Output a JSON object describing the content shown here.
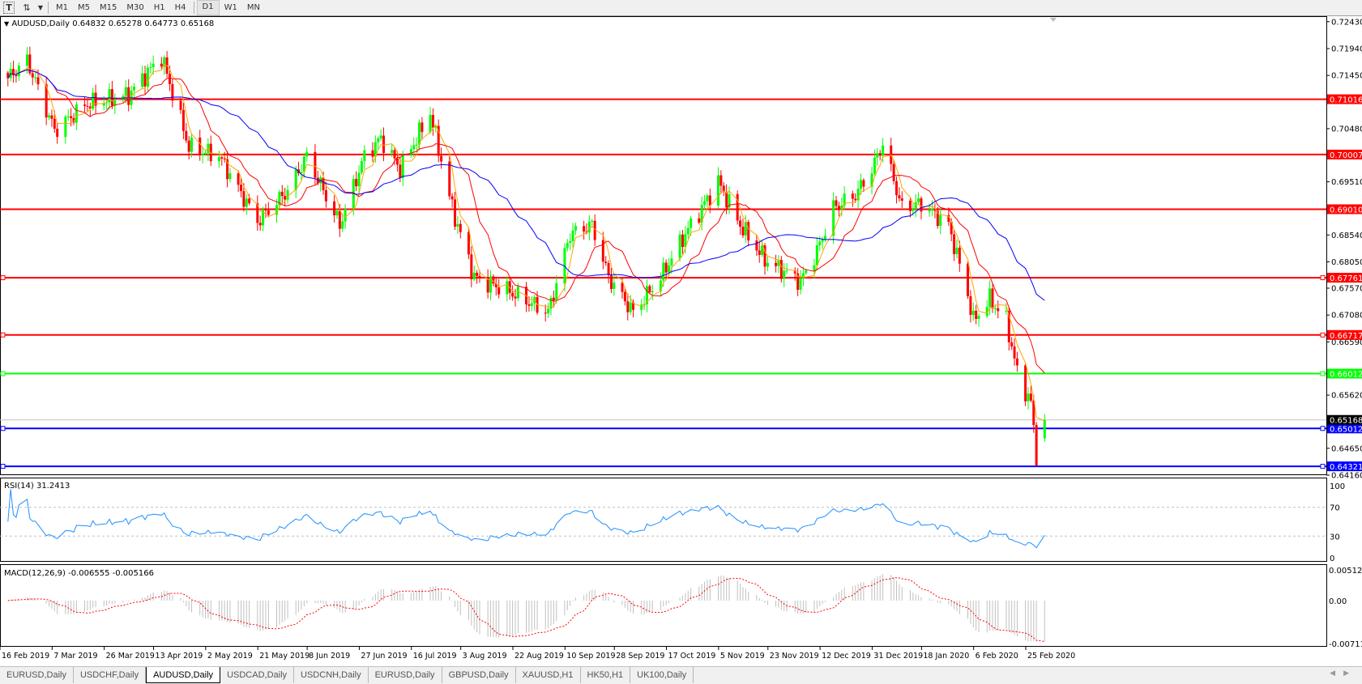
{
  "toolbar": {
    "icons": [
      "text-tool-icon",
      "arrows-tool-icon",
      "dropdown-icon"
    ],
    "timeframes": [
      "M1",
      "M5",
      "M15",
      "M30",
      "H1",
      "H4",
      "D1",
      "W1",
      "MN"
    ],
    "active_timeframe": "D1"
  },
  "chart_data": {
    "type": "candlestick",
    "symbol_label": "AUDUSD,Daily",
    "ohlc_label": "0.64832 0.65278 0.64773 0.65168",
    "last_bar": {
      "open": 0.64832,
      "high": 0.65278,
      "low": 0.64773,
      "close": 0.65168
    },
    "bid_line": {
      "value": 0.65168,
      "label": "0.65168",
      "color": "#000000"
    },
    "ylim": [
      0.6416,
      0.7243
    ],
    "y_ticks": [
      "0.72430",
      "0.71940",
      "0.71450",
      "0.70480",
      "0.69510",
      "0.68540",
      "0.68050",
      "0.67570",
      "0.67080",
      "0.66590",
      "0.65620",
      "0.64650",
      "0.64160"
    ],
    "x_ticks": [
      "16 Feb 2019",
      "7 Mar 2019",
      "26 Mar 2019",
      "13 Apr 2019",
      "2 May 2019",
      "21 May 2019",
      "8 Jun 2019",
      "27 Jun 2019",
      "16 Jul 2019",
      "3 Aug 2019",
      "22 Aug 2019",
      "10 Sep 2019",
      "28 Sep 2019",
      "17 Oct 2019",
      "5 Nov 2019",
      "23 Nov 2019",
      "12 Dec 2019",
      "31 Dec 2019",
      "18 Jan 2020",
      "6 Feb 2020",
      "25 Feb 2020"
    ],
    "close_path": [
      [
        "2019-02-18",
        0.714
      ],
      [
        "2019-02-25",
        0.7172
      ],
      [
        "2019-03-07",
        0.7045
      ],
      [
        "2019-03-19",
        0.7093
      ],
      [
        "2019-04-03",
        0.7109
      ],
      [
        "2019-04-15",
        0.718
      ],
      [
        "2019-04-25",
        0.7014
      ],
      [
        "2019-05-06",
        0.6998
      ],
      [
        "2019-05-20",
        0.6879
      ],
      [
        "2019-05-31",
        0.6935
      ],
      [
        "2019-06-07",
        0.6998
      ],
      [
        "2019-06-19",
        0.6872
      ],
      [
        "2019-06-28",
        0.6998
      ],
      [
        "2019-07-04",
        0.703
      ],
      [
        "2019-07-11",
        0.6974
      ],
      [
        "2019-07-22",
        0.7077
      ],
      [
        "2019-07-30",
        0.6903
      ],
      [
        "2019-08-07",
        0.6777
      ],
      [
        "2019-08-19",
        0.6753
      ],
      [
        "2019-08-28",
        0.6729
      ],
      [
        "2019-09-03",
        0.6713
      ],
      [
        "2019-09-11",
        0.6856
      ],
      [
        "2019-09-19",
        0.6872
      ],
      [
        "2019-09-25",
        0.6777
      ],
      [
        "2019-10-04",
        0.6713
      ],
      [
        "2019-10-14",
        0.6777
      ],
      [
        "2019-10-23",
        0.6856
      ],
      [
        "2019-11-04",
        0.6951
      ],
      [
        "2019-11-12",
        0.6872
      ],
      [
        "2019-11-21",
        0.6809
      ],
      [
        "2019-12-04",
        0.6769
      ],
      [
        "2019-12-10",
        0.6824
      ],
      [
        "2019-12-16",
        0.6903
      ],
      [
        "2019-12-24",
        0.6927
      ],
      [
        "2019-12-30",
        0.6974
      ],
      [
        "2020-01-03",
        0.7021
      ],
      [
        "2020-01-10",
        0.6903
      ],
      [
        "2020-01-17",
        0.6911
      ],
      [
        "2020-01-27",
        0.6872
      ],
      [
        "2020-02-03",
        0.6745
      ],
      [
        "2020-02-05",
        0.6698
      ],
      [
        "2020-02-11",
        0.6737
      ],
      [
        "2020-02-17",
        0.6698
      ],
      [
        "2020-02-21",
        0.6603
      ],
      [
        "2020-02-26",
        0.6548
      ],
      [
        "2020-02-28",
        0.6453
      ],
      [
        "2020-03-02",
        0.65168
      ]
    ],
    "horizontal_lines": [
      {
        "value": 0.71016,
        "label": "0.71016",
        "color": "#ff0000"
      },
      {
        "value": 0.70007,
        "label": "0.70007",
        "color": "#ff0000"
      },
      {
        "value": 0.6901,
        "label": "0.69010",
        "color": "#ff0000"
      },
      {
        "value": 0.67761,
        "label": "0.67761",
        "color": "#ff0000"
      },
      {
        "value": 0.66717,
        "label": "0.66717",
        "color": "#ff0000"
      },
      {
        "value": 0.66012,
        "label": "0.66012",
        "color": "#00ff00"
      },
      {
        "value": 0.65012,
        "label": "0.65012",
        "color": "#0000ff"
      },
      {
        "value": 0.64321,
        "label": "0.64321",
        "color": "#0000ff"
      }
    ],
    "moving_average_colors": [
      "#ffa500",
      "#ff0000",
      "#0000ff"
    ],
    "up_color": "#00ff00",
    "down_color": "#ff0000",
    "rsi": {
      "label": "RSI(14) 31.2413",
      "ylim": [
        0,
        100
      ],
      "levels": [
        70,
        30
      ],
      "y_ticks": [
        "100",
        "70",
        "30",
        "0"
      ],
      "color": "#1e90ff"
    },
    "macd": {
      "label": "MACD(12,26,9) -0.006555 -0.005166",
      "ylim": [
        -0.007111,
        0.005121
      ],
      "y_ticks": [
        "0.005121",
        "0.00",
        "-0.007111"
      ],
      "hist_color": "#c0c0c0",
      "signal_color": "#ff0000"
    }
  },
  "tabs": [
    {
      "label": "EURUSD,Daily"
    },
    {
      "label": "USDCHF,Daily"
    },
    {
      "label": "AUDUSD,Daily",
      "active": true
    },
    {
      "label": "USDCAD,Daily"
    },
    {
      "label": "USDCNH,Daily"
    },
    {
      "label": "EURUSD,Daily"
    },
    {
      "label": "GBPUSD,Daily"
    },
    {
      "label": "XAUUSD,H1"
    },
    {
      "label": "HK50,H1"
    },
    {
      "label": "UK100,Daily"
    }
  ]
}
